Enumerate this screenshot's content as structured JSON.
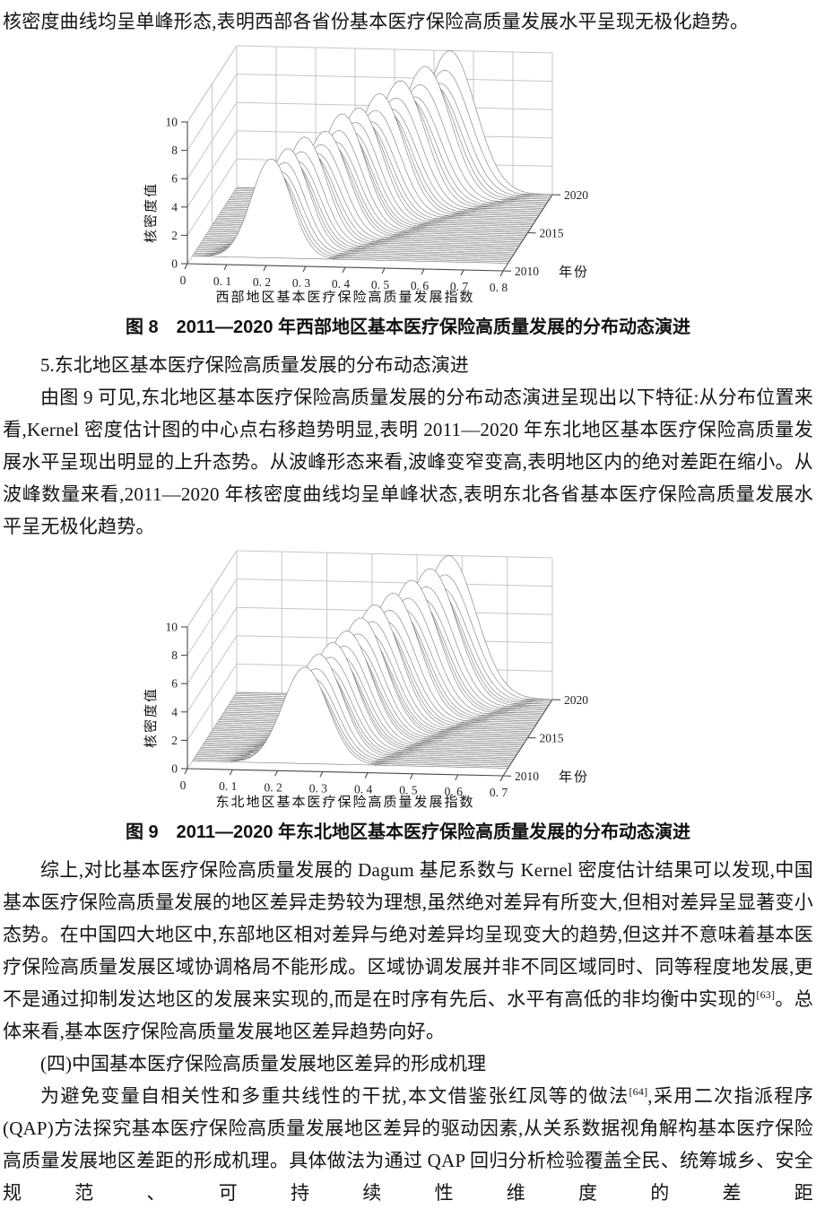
{
  "page": {
    "top_paragraph": "核密度曲线均呈单峰形态,表明西部各省份基本医疗保险高质量发展水平呈现无极化趋势。",
    "fig8_caption": "图 8　2011—2020 年西部地区基本医疗保险高质量发展的分布动态演进",
    "section5_heading": "5.东北地区基本医疗保险高质量发展的分布动态演进",
    "para_northeast": "由图 9 可见,东北地区基本医疗保险高质量发展的分布动态演进呈现出以下特征:从分布位置来看,Kernel 密度估计图的中心点右移趋势明显,表明 2011—2020 年东北地区基本医疗保险高质量发展水平呈现出明显的上升态势。从波峰形态来看,波峰变窄变高,表明地区内的绝对差距在缩小。从波峰数量来看,2011—2020 年核密度曲线均呈单峰状态,表明东北各省基本医疗保险高质量发展水平呈无极化趋势。",
    "fig9_caption": "图 9　2011—2020 年东北地区基本医疗保险高质量发展的分布动态演进",
    "para_summary": {
      "pre": "综上,对比基本医疗保险高质量发展的 Dagum 基尼系数与 Kernel 密度估计结果可以发现,中国基本医疗保险高质量发展的地区差异走势较为理想,虽然绝对差异有所变大,但相对差异呈显著变小态势。在中国四大地区中,东部地区相对差异与绝对差异均呈现变大的趋势,但这并不意味着基本医疗保险高质量发展区域协调格局不能形成。区域协调发展并非不同区域同时、同等程度地发展,更不是通过抑制发达地区的发展来实现的,而是在时序有先后、水平有高低的非均衡中实现的",
      "sup": "[63]",
      "post": "。总体来看,基本医疗保险高质量发展地区差异趋势向好。"
    },
    "section4_heading": "(四)中国基本医疗保险高质量发展地区差异的形成机理",
    "para_qap": {
      "pre": "为避免变量自相关性和多重共线性的干扰,本文借鉴张红凤等的做法",
      "sup": "[64]",
      "post": ",采用二次指派程序(QAP)方法探究基本医疗保险高质量发展地区差异的驱动因素,从关系数据视角解构基本医疗保险高质量发展地区差距的形成机理。具体做法为通过 QAP 回归分析检验覆盖全民、统筹城乡、安全规范、可持续性维度的差距"
    }
  },
  "chart_data": [
    {
      "id": "fig8",
      "type": "area",
      "variant": "3d-kernel-density-mesh",
      "title": "图 8　2011—2020 年西部地区基本医疗保险高质量发展的分布动态演进",
      "xlabel": "西部地区基本医疗保险高质量发展指数",
      "ylabel": "年份",
      "zlabel": "核密度值",
      "xlim": [
        0,
        0.8
      ],
      "zlim": [
        0,
        10
      ],
      "xtick_vals": [
        0,
        0.1,
        0.2,
        0.3,
        0.4,
        0.5,
        0.6,
        0.7,
        0.8
      ],
      "xticks": [
        "0",
        "0. 1",
        "0. 2",
        "0. 3",
        "0. 4",
        "0. 5",
        "0. 6",
        "0. 7",
        "0. 8"
      ],
      "zticks": [
        0,
        2,
        4,
        6,
        8,
        10
      ],
      "year_ticks": [
        2010,
        2015,
        2020
      ],
      "grid": true,
      "series": [
        {
          "year": 2011,
          "peak_x": 0.2,
          "peak_density": 7.0,
          "bandwidth": 0.05
        },
        {
          "year": 2012,
          "peak_x": 0.23,
          "peak_density": 7.2,
          "bandwidth": 0.052
        },
        {
          "year": 2013,
          "peak_x": 0.26,
          "peak_density": 7.5,
          "bandwidth": 0.054
        },
        {
          "year": 2014,
          "peak_x": 0.3,
          "peak_density": 7.4,
          "bandwidth": 0.056
        },
        {
          "year": 2015,
          "peak_x": 0.33,
          "peak_density": 8.1,
          "bandwidth": 0.057
        },
        {
          "year": 2016,
          "peak_x": 0.36,
          "peak_density": 8.0,
          "bandwidth": 0.058
        },
        {
          "year": 2017,
          "peak_x": 0.4,
          "peak_density": 8.5,
          "bandwidth": 0.06
        },
        {
          "year": 2018,
          "peak_x": 0.44,
          "peak_density": 8.9,
          "bandwidth": 0.062
        },
        {
          "year": 2019,
          "peak_x": 0.49,
          "peak_density": 9.4,
          "bandwidth": 0.064
        },
        {
          "year": 2020,
          "peak_x": 0.54,
          "peak_density": 10.0,
          "bandwidth": 0.065
        }
      ]
    },
    {
      "id": "fig9",
      "type": "area",
      "variant": "3d-kernel-density-mesh",
      "title": "图 9　2011—2020 年东北地区基本医疗保险高质量发展的分布动态演进",
      "xlabel": "东北地区基本医疗保险高质量发展指数",
      "ylabel": "年份",
      "zlabel": "核密度值",
      "xlim": [
        0,
        0.7
      ],
      "zlim": [
        0,
        10
      ],
      "xtick_vals": [
        0,
        0.1,
        0.2,
        0.3,
        0.4,
        0.5,
        0.6,
        0.7
      ],
      "xticks": [
        "0",
        "0. 1",
        "0. 2",
        "0. 3",
        "0. 4",
        "0. 5",
        "0. 6",
        "0. 7"
      ],
      "zticks": [
        0,
        2,
        4,
        6,
        8,
        10
      ],
      "year_ticks": [
        2010,
        2015,
        2020
      ],
      "grid": true,
      "series": [
        {
          "year": 2011,
          "peak_x": 0.25,
          "peak_density": 6.8,
          "bandwidth": 0.05
        },
        {
          "year": 2012,
          "peak_x": 0.27,
          "peak_density": 7.2,
          "bandwidth": 0.051
        },
        {
          "year": 2013,
          "peak_x": 0.29,
          "peak_density": 7.5,
          "bandwidth": 0.053
        },
        {
          "year": 2014,
          "peak_x": 0.31,
          "peak_density": 7.8,
          "bandwidth": 0.054
        },
        {
          "year": 2015,
          "peak_x": 0.33,
          "peak_density": 8.2,
          "bandwidth": 0.055
        },
        {
          "year": 2016,
          "peak_x": 0.35,
          "peak_density": 8.6,
          "bandwidth": 0.056
        },
        {
          "year": 2017,
          "peak_x": 0.38,
          "peak_density": 8.9,
          "bandwidth": 0.057
        },
        {
          "year": 2018,
          "peak_x": 0.41,
          "peak_density": 9.3,
          "bandwidth": 0.058
        },
        {
          "year": 2019,
          "peak_x": 0.44,
          "peak_density": 9.6,
          "bandwidth": 0.059
        },
        {
          "year": 2020,
          "peak_x": 0.47,
          "peak_density": 10.0,
          "bandwidth": 0.06
        }
      ]
    }
  ]
}
